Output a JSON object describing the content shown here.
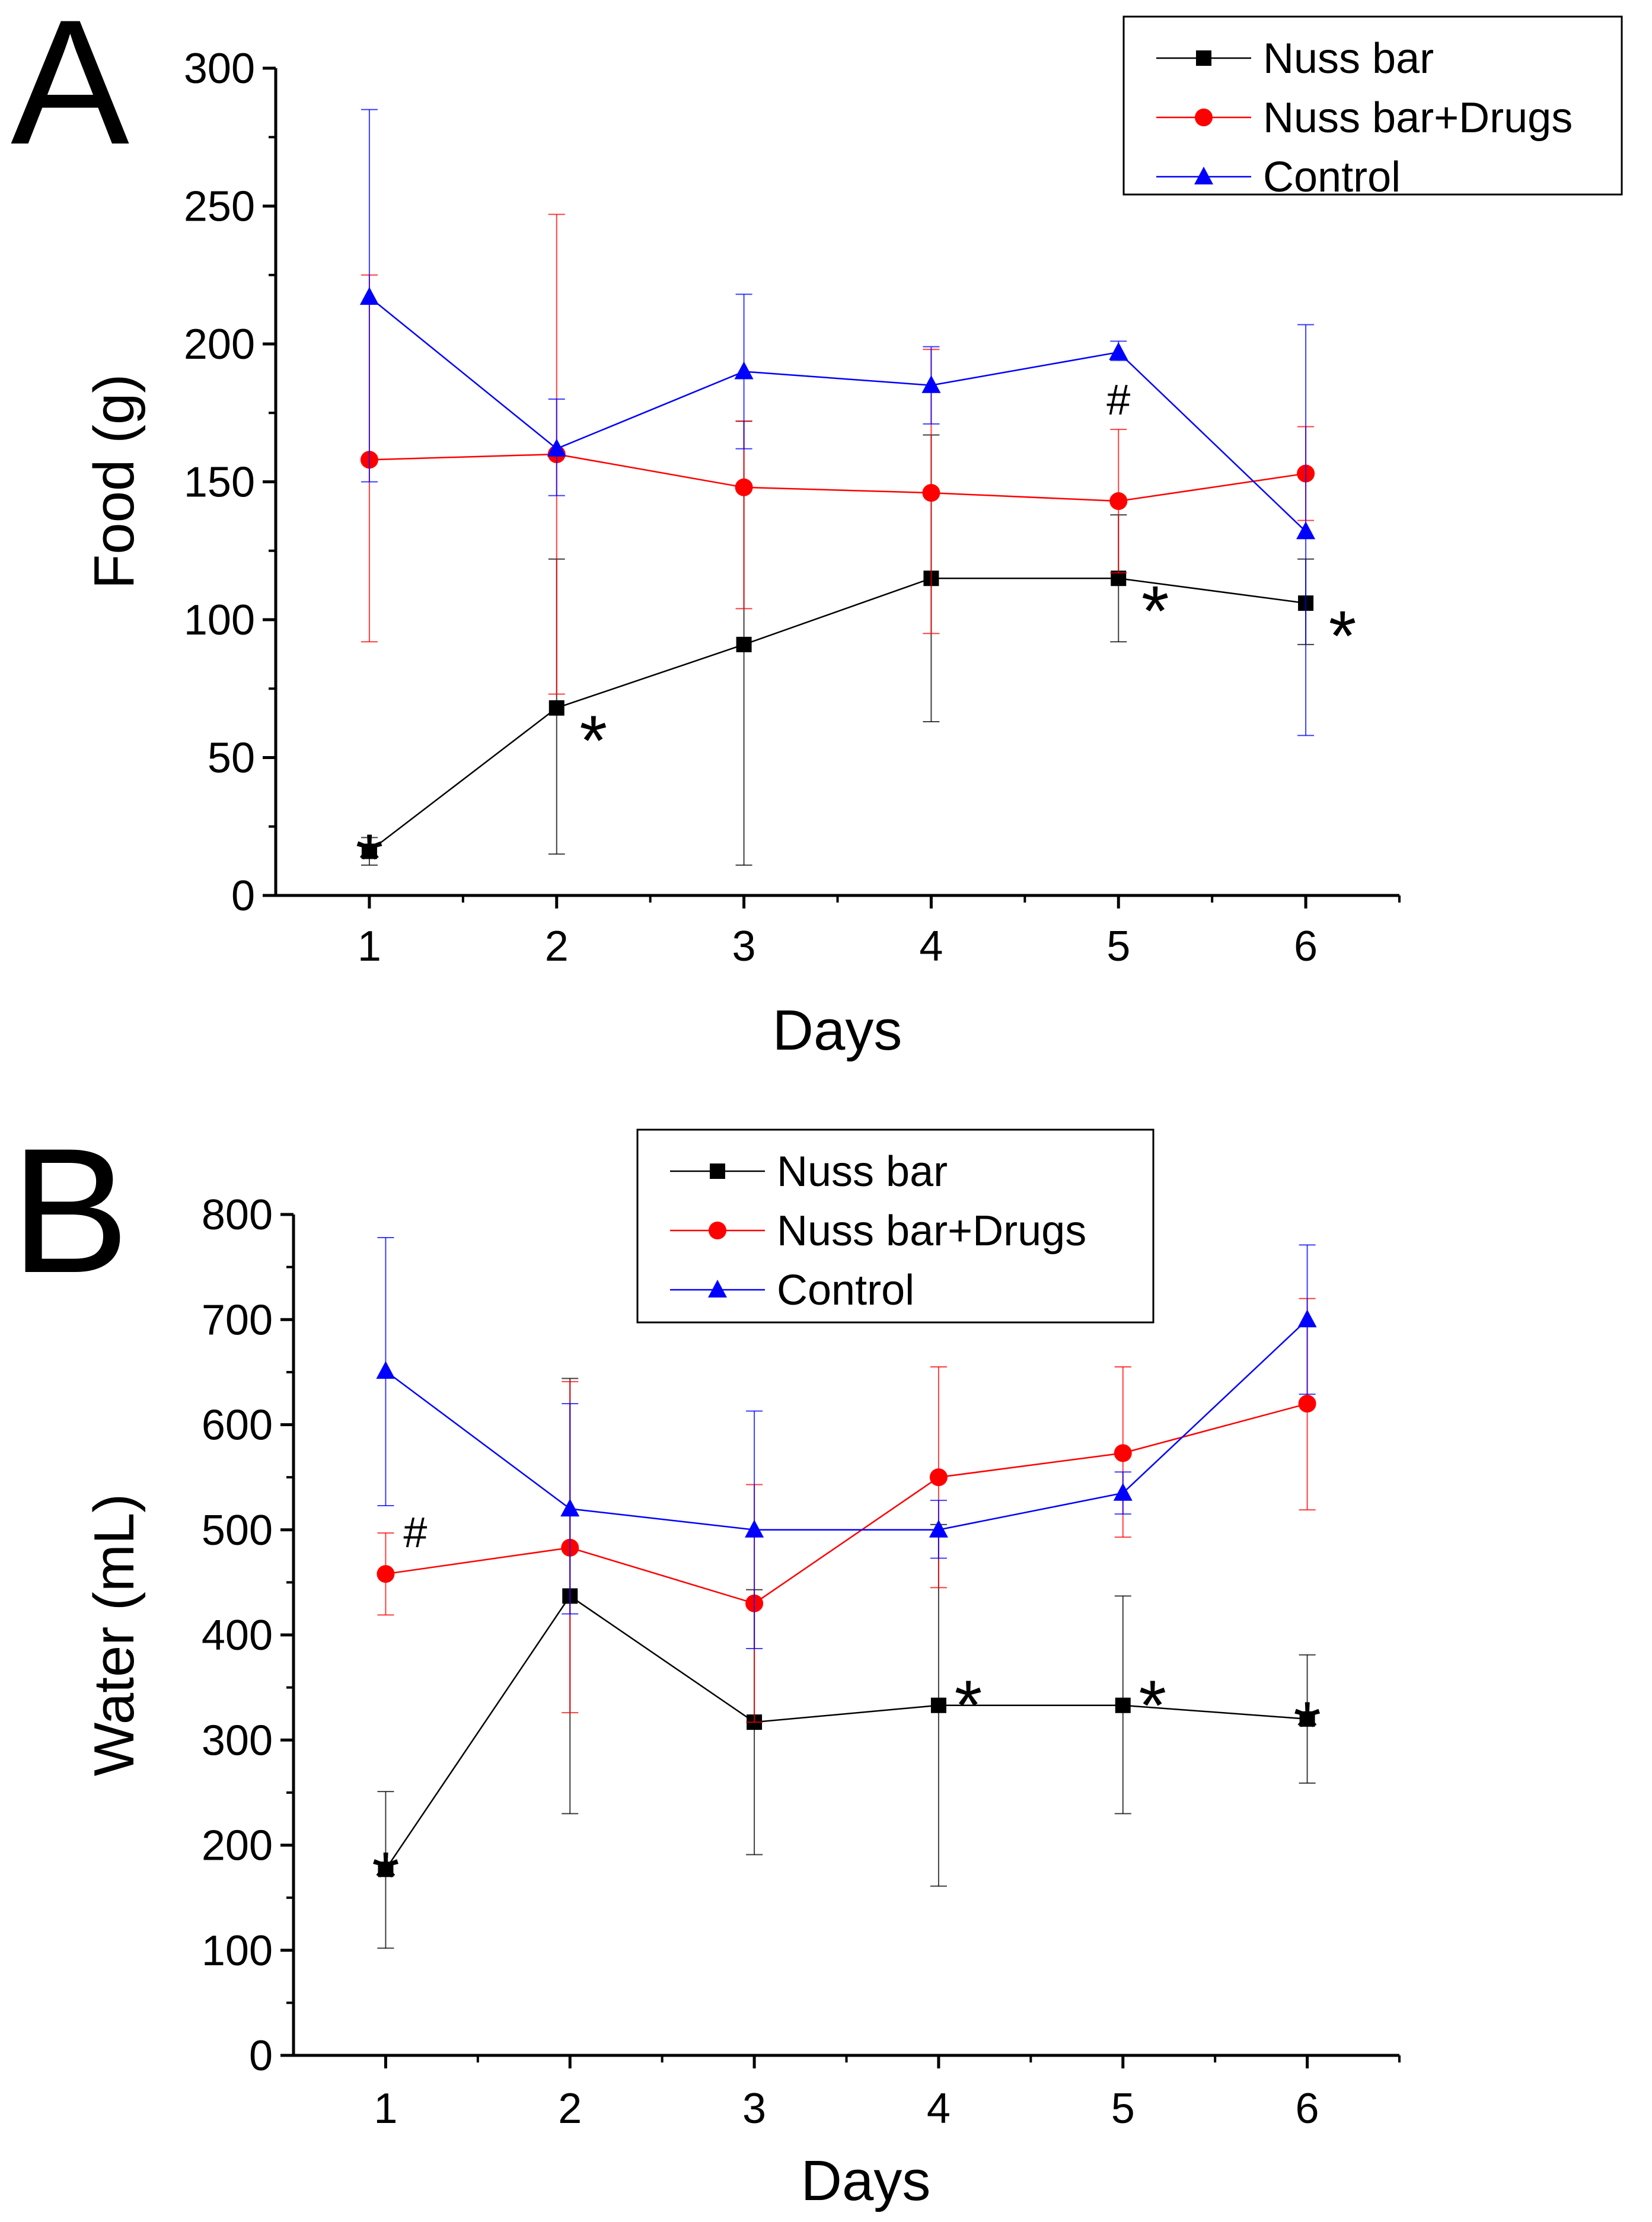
{
  "figure": {
    "panels": [
      {
        "letter": "A"
      },
      {
        "letter": "B"
      }
    ]
  },
  "chart_data": [
    {
      "type": "line",
      "panel": "A",
      "title": "",
      "xlabel": "Days",
      "ylabel": "Food (g)",
      "xlim": [
        0.5,
        6.5
      ],
      "ylim": [
        0,
        300
      ],
      "x_ticks": [
        1,
        2,
        3,
        4,
        5,
        6
      ],
      "y_ticks": [
        0,
        50,
        100,
        150,
        200,
        250,
        300
      ],
      "grid": false,
      "legend_position": "top-right",
      "x": [
        1,
        2,
        3,
        4,
        5,
        6
      ],
      "series": [
        {
          "name": "Nuss bar",
          "color": "#000000",
          "marker": "square",
          "values": [
            16,
            68,
            91,
            115,
            115,
            106
          ],
          "err_low": [
            11,
            15,
            11,
            63,
            92,
            91
          ],
          "err_high": [
            21,
            122,
            172,
            167,
            138,
            122
          ]
        },
        {
          "name": "Nuss bar+Drugs",
          "color": "#ff0000",
          "marker": "circle",
          "values": [
            158,
            160,
            148,
            146,
            143,
            153
          ],
          "err_low": [
            92,
            73,
            104,
            95,
            117,
            136
          ],
          "err_high": [
            225,
            247,
            172,
            198,
            169,
            170
          ]
        },
        {
          "name": "Control",
          "color": "#0000ff",
          "marker": "triangle",
          "values": [
            217,
            162,
            190,
            185,
            197,
            132
          ],
          "err_low": [
            150,
            145,
            162,
            171,
            194,
            58
          ],
          "err_high": [
            285,
            180,
            218,
            199,
            201,
            207
          ]
        }
      ],
      "annotations": [
        {
          "text": "*",
          "x": 1,
          "y": 16,
          "pos": "above"
        },
        {
          "text": "*",
          "x": 2,
          "y": 68,
          "pos": "right"
        },
        {
          "text": "*",
          "x": 5,
          "y": 115,
          "pos": "right"
        },
        {
          "text": "*",
          "x": 6,
          "y": 106,
          "pos": "right"
        },
        {
          "text": "#",
          "x": 5,
          "y": 197,
          "pos": "below"
        }
      ]
    },
    {
      "type": "line",
      "panel": "B",
      "title": "",
      "xlabel": "Days",
      "ylabel": "Water (mL)",
      "xlim": [
        0.5,
        6.5
      ],
      "ylim": [
        0,
        800
      ],
      "x_ticks": [
        1,
        2,
        3,
        4,
        5,
        6
      ],
      "y_ticks": [
        0,
        100,
        200,
        300,
        400,
        500,
        600,
        700,
        800
      ],
      "grid": false,
      "legend_position": "top-center",
      "x": [
        1,
        2,
        3,
        4,
        5,
        6
      ],
      "series": [
        {
          "name": "Nuss bar",
          "color": "#000000",
          "marker": "square",
          "values": [
            177,
            437,
            317,
            333,
            333,
            320
          ],
          "err_low": [
            102,
            230,
            191,
            161,
            230,
            259
          ],
          "err_high": [
            251,
            644,
            443,
            505,
            437,
            381
          ]
        },
        {
          "name": "Nuss bar+Drugs",
          "color": "#ff0000",
          "marker": "circle",
          "values": [
            458,
            483,
            430,
            550,
            573,
            620
          ],
          "err_low": [
            419,
            326,
            317,
            445,
            493,
            519
          ],
          "err_high": [
            497,
            641,
            543,
            655,
            655,
            720
          ]
        },
        {
          "name": "Control",
          "color": "#0000ff",
          "marker": "triangle",
          "values": [
            651,
            520,
            500,
            500,
            535,
            700
          ],
          "err_low": [
            523,
            420,
            387,
            473,
            515,
            629
          ],
          "err_high": [
            778,
            620,
            613,
            528,
            555,
            771
          ]
        }
      ],
      "annotations": [
        {
          "text": "*",
          "x": 1,
          "y": 177,
          "pos": "above"
        },
        {
          "text": "#",
          "x": 1,
          "y": 458,
          "pos": "upper-right"
        },
        {
          "text": "*",
          "x": 4,
          "y": 333,
          "pos": "upper-right"
        },
        {
          "text": "*",
          "x": 5,
          "y": 333,
          "pos": "upper-right"
        },
        {
          "text": "*",
          "x": 6,
          "y": 320,
          "pos": "above"
        }
      ]
    }
  ]
}
